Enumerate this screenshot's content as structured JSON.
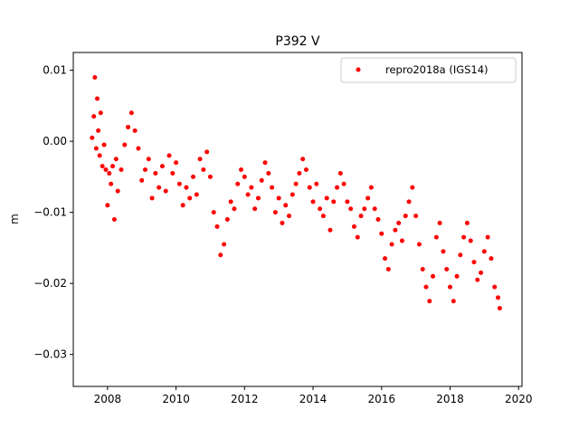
{
  "chart_data": {
    "type": "scatter",
    "title": "P392 V",
    "xlabel": "",
    "ylabel": "m",
    "xlim": [
      2007.0,
      2020.1
    ],
    "ylim": [
      -0.0345,
      0.0125
    ],
    "x_ticks": [
      2008,
      2010,
      2012,
      2014,
      2016,
      2018,
      2020
    ],
    "x_tick_labels": [
      "2008",
      "2010",
      "2012",
      "2014",
      "2016",
      "2018",
      "2020"
    ],
    "y_ticks": [
      0.01,
      0.0,
      -0.01,
      -0.02,
      -0.03
    ],
    "y_tick_labels": [
      "0.01",
      "0.00",
      "−0.01",
      "−0.02",
      "−0.03"
    ],
    "grid": false,
    "legend_position": "top-right",
    "series": [
      {
        "name": "repro2018a (IGS14)",
        "color": "#ff0000",
        "marker": "circle",
        "points": [
          [
            2007.55,
            0.0005
          ],
          [
            2007.6,
            0.0035
          ],
          [
            2007.63,
            0.009
          ],
          [
            2007.67,
            -0.001
          ],
          [
            2007.7,
            0.006
          ],
          [
            2007.73,
            0.0015
          ],
          [
            2007.77,
            -0.002
          ],
          [
            2007.8,
            0.004
          ],
          [
            2007.85,
            -0.0035
          ],
          [
            2007.9,
            -0.0005
          ],
          [
            2007.95,
            -0.004
          ],
          [
            2008.0,
            -0.009
          ],
          [
            2008.05,
            -0.0045
          ],
          [
            2008.1,
            -0.006
          ],
          [
            2008.15,
            -0.0035
          ],
          [
            2008.2,
            -0.011
          ],
          [
            2008.25,
            -0.0025
          ],
          [
            2008.3,
            -0.007
          ],
          [
            2008.4,
            -0.004
          ],
          [
            2008.5,
            -0.0005
          ],
          [
            2008.6,
            0.002
          ],
          [
            2008.7,
            0.004
          ],
          [
            2008.8,
            0.0015
          ],
          [
            2008.9,
            -0.001
          ],
          [
            2009.0,
            -0.0055
          ],
          [
            2009.1,
            -0.004
          ],
          [
            2009.2,
            -0.0025
          ],
          [
            2009.3,
            -0.008
          ],
          [
            2009.4,
            -0.0045
          ],
          [
            2009.5,
            -0.0065
          ],
          [
            2009.6,
            -0.0035
          ],
          [
            2009.7,
            -0.007
          ],
          [
            2009.8,
            -0.002
          ],
          [
            2009.9,
            -0.0045
          ],
          [
            2010.0,
            -0.003
          ],
          [
            2010.1,
            -0.006
          ],
          [
            2010.2,
            -0.009
          ],
          [
            2010.3,
            -0.0065
          ],
          [
            2010.4,
            -0.008
          ],
          [
            2010.5,
            -0.005
          ],
          [
            2010.6,
            -0.0075
          ],
          [
            2010.7,
            -0.0025
          ],
          [
            2010.8,
            -0.004
          ],
          [
            2010.9,
            -0.0015
          ],
          [
            2011.0,
            -0.005
          ],
          [
            2011.1,
            -0.01
          ],
          [
            2011.2,
            -0.012
          ],
          [
            2011.3,
            -0.016
          ],
          [
            2011.4,
            -0.0145
          ],
          [
            2011.5,
            -0.011
          ],
          [
            2011.6,
            -0.0085
          ],
          [
            2011.7,
            -0.0095
          ],
          [
            2011.8,
            -0.006
          ],
          [
            2011.9,
            -0.004
          ],
          [
            2012.0,
            -0.005
          ],
          [
            2012.1,
            -0.0075
          ],
          [
            2012.2,
            -0.0065
          ],
          [
            2012.3,
            -0.0095
          ],
          [
            2012.4,
            -0.008
          ],
          [
            2012.5,
            -0.0055
          ],
          [
            2012.6,
            -0.003
          ],
          [
            2012.7,
            -0.0045
          ],
          [
            2012.8,
            -0.0065
          ],
          [
            2012.9,
            -0.01
          ],
          [
            2013.0,
            -0.008
          ],
          [
            2013.1,
            -0.0115
          ],
          [
            2013.2,
            -0.009
          ],
          [
            2013.3,
            -0.0105
          ],
          [
            2013.4,
            -0.0075
          ],
          [
            2013.5,
            -0.006
          ],
          [
            2013.6,
            -0.0045
          ],
          [
            2013.7,
            -0.0025
          ],
          [
            2013.8,
            -0.004
          ],
          [
            2013.9,
            -0.0065
          ],
          [
            2014.0,
            -0.0085
          ],
          [
            2014.1,
            -0.006
          ],
          [
            2014.2,
            -0.0095
          ],
          [
            2014.3,
            -0.0105
          ],
          [
            2014.4,
            -0.008
          ],
          [
            2014.5,
            -0.0125
          ],
          [
            2014.6,
            -0.0085
          ],
          [
            2014.7,
            -0.0065
          ],
          [
            2014.8,
            -0.0045
          ],
          [
            2014.9,
            -0.006
          ],
          [
            2015.0,
            -0.0085
          ],
          [
            2015.1,
            -0.0095
          ],
          [
            2015.2,
            -0.012
          ],
          [
            2015.3,
            -0.0135
          ],
          [
            2015.4,
            -0.0105
          ],
          [
            2015.5,
            -0.0095
          ],
          [
            2015.6,
            -0.008
          ],
          [
            2015.7,
            -0.0065
          ],
          [
            2015.8,
            -0.0095
          ],
          [
            2015.9,
            -0.011
          ],
          [
            2016.0,
            -0.013
          ],
          [
            2016.1,
            -0.0165
          ],
          [
            2016.2,
            -0.018
          ],
          [
            2016.3,
            -0.0145
          ],
          [
            2016.4,
            -0.0125
          ],
          [
            2016.5,
            -0.0115
          ],
          [
            2016.6,
            -0.014
          ],
          [
            2016.7,
            -0.0105
          ],
          [
            2016.8,
            -0.0085
          ],
          [
            2016.9,
            -0.0065
          ],
          [
            2017.0,
            -0.0105
          ],
          [
            2017.1,
            -0.0145
          ],
          [
            2017.2,
            -0.018
          ],
          [
            2017.3,
            -0.0205
          ],
          [
            2017.4,
            -0.0225
          ],
          [
            2017.5,
            -0.019
          ],
          [
            2017.6,
            -0.0135
          ],
          [
            2017.7,
            -0.0115
          ],
          [
            2017.8,
            -0.0155
          ],
          [
            2017.9,
            -0.018
          ],
          [
            2018.0,
            -0.0205
          ],
          [
            2018.1,
            -0.0225
          ],
          [
            2018.2,
            -0.019
          ],
          [
            2018.3,
            -0.016
          ],
          [
            2018.4,
            -0.0135
          ],
          [
            2018.5,
            -0.0115
          ],
          [
            2018.6,
            -0.014
          ],
          [
            2018.7,
            -0.017
          ],
          [
            2018.8,
            -0.0195
          ],
          [
            2018.9,
            -0.0185
          ],
          [
            2019.0,
            -0.0155
          ],
          [
            2019.1,
            -0.0135
          ],
          [
            2019.2,
            -0.0165
          ],
          [
            2019.3,
            -0.0205
          ],
          [
            2019.4,
            -0.022
          ],
          [
            2019.45,
            -0.0235
          ]
        ]
      }
    ]
  }
}
